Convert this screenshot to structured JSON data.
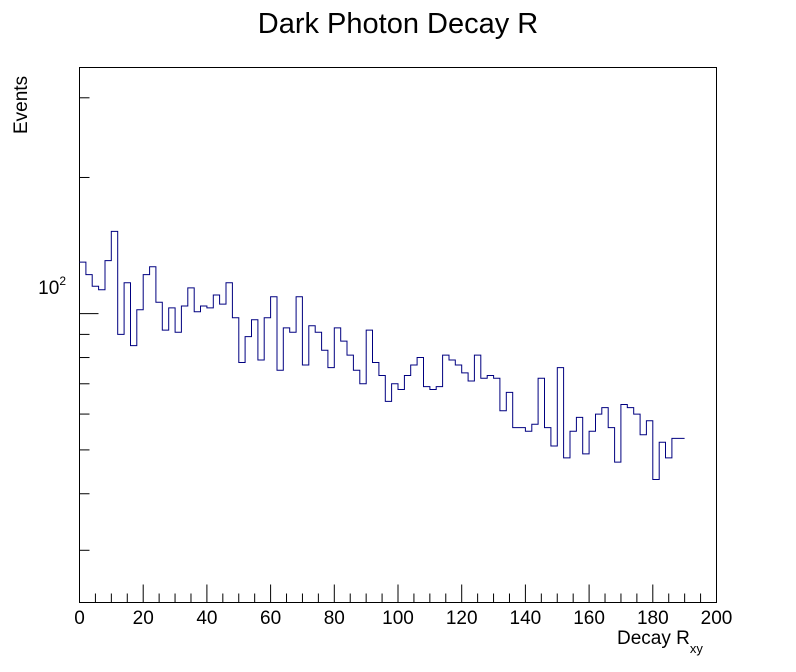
{
  "chart_data": {
    "type": "step",
    "title": "Dark Photon Decay R",
    "xlabel": {
      "main": "Decay R",
      "subscript": "xy"
    },
    "ylabel": "Events",
    "xlim": [
      0,
      200
    ],
    "ylim_log": [
      23,
      350
    ],
    "yscale": "log",
    "x_ticks": [
      0,
      20,
      40,
      60,
      80,
      100,
      120,
      140,
      160,
      180,
      200
    ],
    "y_tick_label": {
      "base": "10",
      "exponent": "2",
      "value": 100
    },
    "bin_width": 2,
    "line_color": "#000080",
    "values": [
      130,
      122,
      115,
      113,
      131,
      152,
      90,
      117,
      85,
      102,
      122,
      127,
      106,
      92,
      103,
      91,
      104,
      114,
      101,
      104,
      103,
      110,
      105,
      117,
      98,
      78,
      89,
      97,
      79,
      98,
      109,
      75,
      93,
      91,
      109,
      77,
      94,
      91,
      83,
      76,
      93,
      87,
      81,
      75,
      70,
      92,
      78,
      73,
      64,
      70,
      68,
      73,
      77,
      80,
      69,
      68,
      69,
      81,
      79,
      77,
      74,
      71,
      81,
      72,
      73,
      72,
      61,
      67,
      56,
      56,
      55,
      57,
      72,
      56,
      51,
      76,
      48,
      55,
      59,
      49,
      55,
      60,
      62,
      56,
      47,
      63,
      62,
      60,
      54,
      58,
      43,
      52,
      48,
      53,
      53
    ]
  }
}
